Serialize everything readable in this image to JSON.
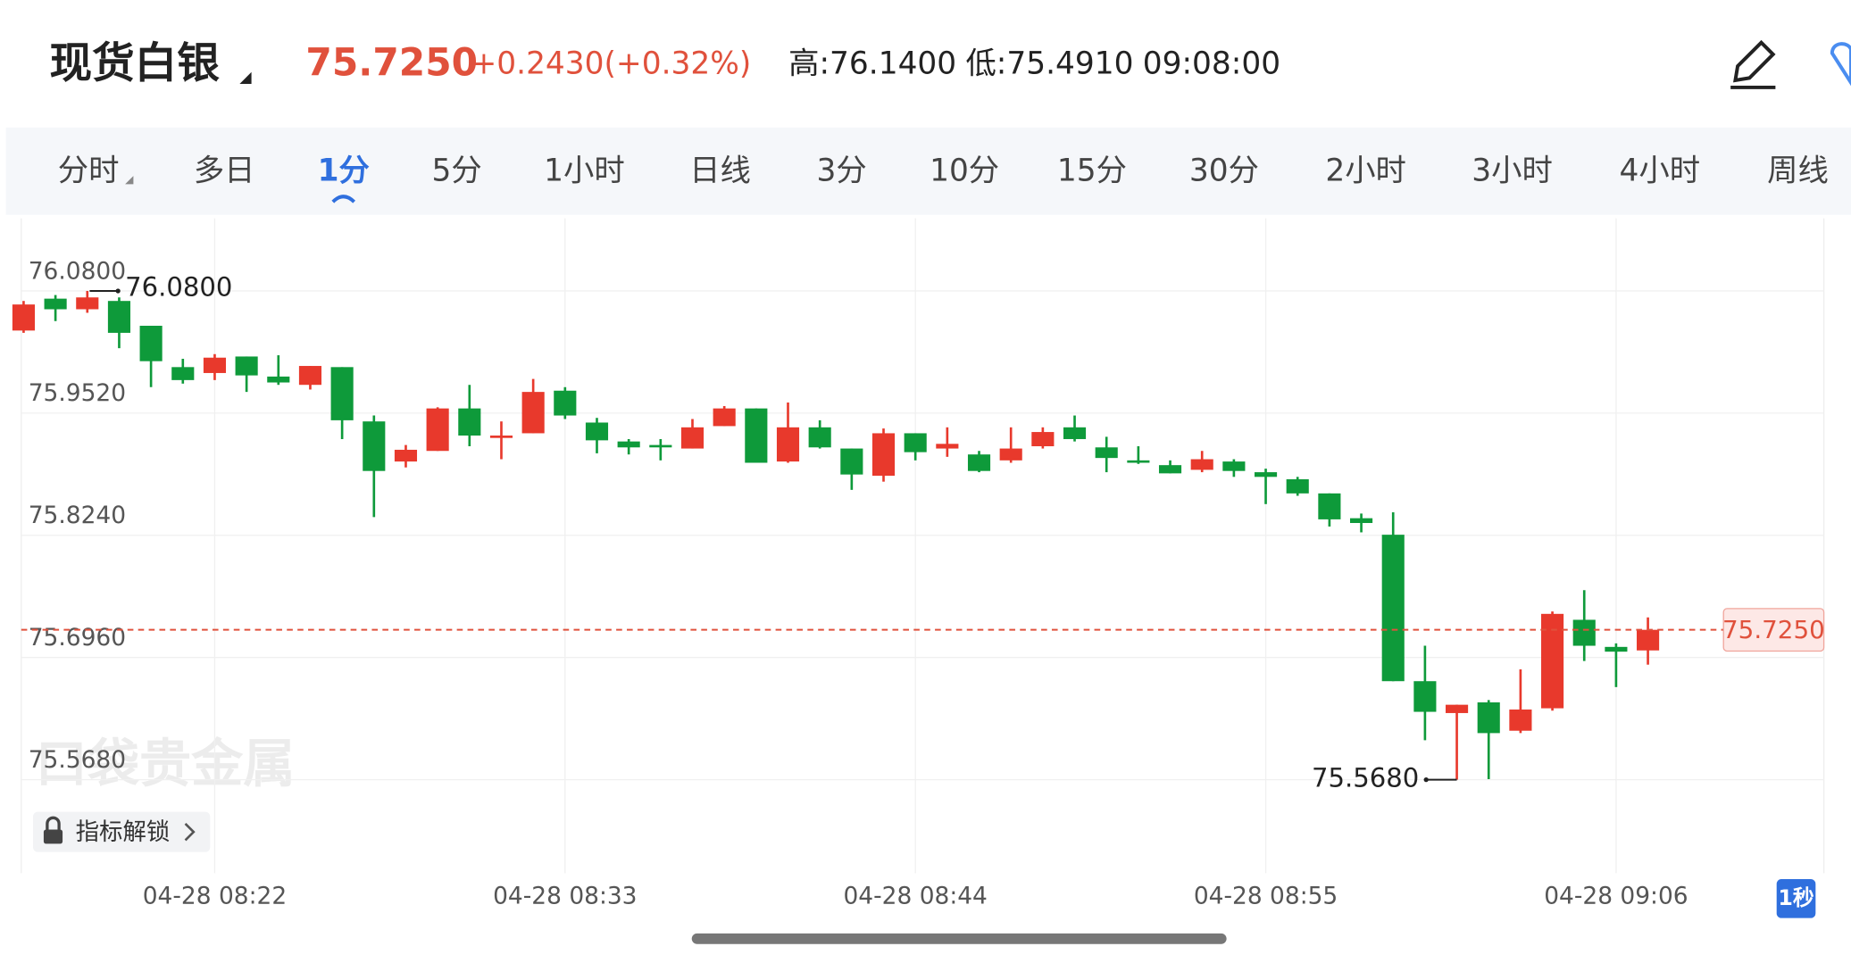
{
  "header": {
    "name": "现货白银",
    "price": "75.7250",
    "change": "+0.2430(+0.32%)",
    "high": "高:76.1400",
    "low": "低:75.4910",
    "time": "09:08:00"
  },
  "tabs": [
    "分时",
    "多日",
    "1分",
    "5分",
    "1小时",
    "日线",
    "3分",
    "10分",
    "15分",
    "30分",
    "2小时",
    "3小时",
    "4小时",
    "周线"
  ],
  "active_tab": 2,
  "indicator_button": "指标解锁",
  "interval_badge": "1秒",
  "watermark": "口袋贵金属",
  "chart_data": {
    "type": "candlestick",
    "categories": [
      null,
      null,
      null,
      null,
      null,
      null,
      "04-28 08:22",
      null,
      null,
      null,
      null,
      null,
      null,
      null,
      null,
      null,
      null,
      "04-28 08:33",
      null,
      null,
      null,
      null,
      null,
      null,
      null,
      null,
      null,
      null,
      "04-28 08:44",
      null,
      null,
      null,
      null,
      null,
      null,
      null,
      null,
      null,
      null,
      "04-28 08:55",
      null,
      null,
      null,
      null,
      null,
      null,
      null,
      null,
      null,
      null,
      "04-28 09:06",
      null
    ],
    "open": [
      76.0385,
      76.0719,
      76.0608,
      76.0695,
      76.0435,
      76.0002,
      75.994,
      76.0113,
      75.9903,
      75.9816,
      76.0002,
      75.9433,
      75.9013,
      75.9124,
      75.9569,
      75.926,
      75.9309,
      75.9755,
      75.9421,
      75.9223,
      75.9186,
      75.9149,
      75.9384,
      75.9569,
      75.9013,
      75.9371,
      75.9149,
      75.8864,
      75.9309,
      75.9149,
      75.9087,
      75.9025,
      75.9173,
      75.9371,
      75.9161,
      75.9025,
      75.8975,
      75.8926,
      75.9013,
      75.8901,
      75.8827,
      75.8679,
      75.8419,
      75.8246,
      75.6712,
      75.6378,
      75.649,
      75.6193,
      75.6428,
      75.7355,
      75.7071,
      75.7034
    ],
    "high": [
      76.0695,
      76.0757,
      76.08,
      76.0732,
      76.0435,
      76.0089,
      76.0138,
      76.0113,
      76.0126,
      76.0014,
      76.0002,
      75.9495,
      75.9186,
      75.9581,
      75.9816,
      75.9433,
      75.9878,
      75.9792,
      75.947,
      75.9248,
      75.9248,
      75.9458,
      75.9594,
      75.9569,
      75.9631,
      75.9445,
      75.9149,
      75.9359,
      75.9309,
      75.9371,
      75.9124,
      75.9371,
      75.9371,
      75.9495,
      75.9272,
      75.9173,
      75.9025,
      75.9124,
      75.9037,
      75.8938,
      75.8852,
      75.8679,
      75.8468,
      75.8481,
      75.7083,
      75.6465,
      75.6514,
      75.6836,
      75.7442,
      75.7665,
      75.7108,
      75.738
    ],
    "low": [
      76.0361,
      76.0484,
      76.0571,
      76.02,
      75.9792,
      75.9829,
      75.9866,
      75.9742,
      75.9816,
      75.9767,
      75.9248,
      75.8431,
      75.8951,
      75.9124,
      75.9173,
      75.9037,
      75.9309,
      75.9458,
      75.9099,
      75.9087,
      75.9025,
      75.9149,
      75.9384,
      75.9,
      75.9,
      75.9149,
      75.8716,
      75.8802,
      75.9025,
      75.9062,
      75.8901,
      75.9,
      75.9149,
      75.9223,
      75.8901,
      75.8988,
      75.8889,
      75.8901,
      75.8852,
      75.8567,
      75.8654,
      75.8332,
      75.8271,
      75.6712,
      75.6094,
      75.568,
      75.5686,
      75.6168,
      75.6403,
      75.6923,
      75.665,
      75.6885
    ],
    "close": [
      76.0658,
      76.0608,
      76.0732,
      76.0361,
      76.0064,
      75.9866,
      76.0101,
      75.9915,
      75.9841,
      76.0014,
      75.9445,
      75.8914,
      75.9136,
      75.9569,
      75.9285,
      75.9285,
      75.9742,
      75.9495,
      75.9235,
      75.9161,
      75.9161,
      75.9371,
      75.9569,
      75.9,
      75.9371,
      75.9161,
      75.8877,
      75.9309,
      75.9111,
      75.9198,
      75.8914,
      75.9149,
      75.9322,
      75.9248,
      75.905,
      75.9,
      75.8889,
      75.9037,
      75.8914,
      75.8852,
      75.8679,
      75.8407,
      75.8369,
      75.6712,
      75.6391,
      75.6465,
      75.6168,
      75.6415,
      75.7417,
      75.7083,
      75.7021,
      75.725
    ],
    "up_color": "#e8392c",
    "down_color": "#0e9a3a",
    "ylim": [
      75.47,
      76.156
    ],
    "yticks": [
      {
        "value": 76.08,
        "label": "76.0800"
      },
      {
        "value": 75.952,
        "label": "75.9520"
      },
      {
        "value": 75.824,
        "label": "75.8240"
      },
      {
        "value": 75.696,
        "label": "75.6960"
      },
      {
        "value": 75.568,
        "label": "75.5680"
      }
    ],
    "grid": true,
    "max_marker": {
      "index": 2,
      "value": 76.08,
      "label": "76.0800"
    },
    "min_marker": {
      "index": 45,
      "value": 75.568,
      "label": "75.5680"
    },
    "current_price": {
      "value": 75.725,
      "label": "75.7250",
      "color": "#e0513c"
    }
  }
}
